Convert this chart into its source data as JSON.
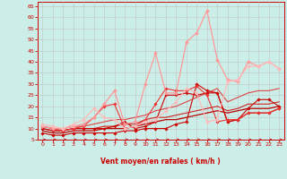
{
  "title": "",
  "xlabel": "Vent moyen/en rafales ( km/h )",
  "ylabel": "",
  "background_color": "#cceee8",
  "grid_color": "#bbbbbb",
  "x_ticks": [
    0,
    1,
    2,
    3,
    4,
    5,
    6,
    7,
    8,
    9,
    10,
    11,
    12,
    13,
    14,
    15,
    16,
    17,
    18,
    19,
    20,
    21,
    22,
    23
  ],
  "y_ticks": [
    5,
    10,
    15,
    20,
    25,
    30,
    35,
    40,
    45,
    50,
    55,
    60,
    65
  ],
  "xlim": [
    -0.5,
    23.5
  ],
  "ylim": [
    5,
    67
  ],
  "lines": [
    {
      "x": [
        0,
        1,
        2,
        3,
        4,
        5,
        6,
        7,
        8,
        9,
        10,
        11,
        12,
        13,
        14,
        15,
        16,
        17,
        18,
        19,
        20,
        21,
        22,
        23
      ],
      "y": [
        8,
        7,
        7,
        8,
        8,
        8,
        8,
        8,
        9,
        9,
        10,
        10,
        10,
        12,
        13,
        30,
        27,
        26,
        13,
        14,
        19,
        23,
        23,
        20
      ],
      "color": "#cc0000",
      "lw": 0.8,
      "marker": "D",
      "ms": 1.8
    },
    {
      "x": [
        0,
        1,
        2,
        3,
        4,
        5,
        6,
        7,
        8,
        9,
        10,
        11,
        12,
        13,
        14,
        15,
        16,
        17,
        18,
        19,
        20,
        21,
        22,
        23
      ],
      "y": [
        9,
        8,
        8,
        9,
        9,
        9,
        10,
        10,
        10,
        11,
        12,
        13,
        14,
        14,
        15,
        16,
        17,
        18,
        17,
        18,
        19,
        19,
        19,
        20
      ],
      "color": "#bb0000",
      "lw": 0.9,
      "marker": null,
      "ms": 0
    },
    {
      "x": [
        0,
        1,
        2,
        3,
        4,
        5,
        6,
        7,
        8,
        9,
        10,
        11,
        12,
        13,
        14,
        15,
        16,
        17,
        18,
        19,
        20,
        21,
        22,
        23
      ],
      "y": [
        10,
        9,
        9,
        10,
        10,
        10,
        11,
        11,
        12,
        12,
        14,
        15,
        15,
        16,
        17,
        18,
        19,
        20,
        18,
        19,
        21,
        21,
        21,
        22
      ],
      "color": "#cc2222",
      "lw": 0.8,
      "marker": null,
      "ms": 0
    },
    {
      "x": [
        0,
        1,
        2,
        3,
        4,
        5,
        6,
        7,
        8,
        9,
        10,
        11,
        12,
        13,
        14,
        15,
        16,
        17,
        18,
        19,
        20,
        21,
        22,
        23
      ],
      "y": [
        11,
        10,
        10,
        11,
        11,
        12,
        13,
        14,
        14,
        15,
        16,
        18,
        19,
        20,
        22,
        24,
        26,
        28,
        22,
        24,
        26,
        27,
        27,
        28
      ],
      "color": "#dd4444",
      "lw": 0.8,
      "marker": null,
      "ms": 0
    },
    {
      "x": [
        0,
        1,
        2,
        3,
        4,
        5,
        6,
        7,
        8,
        9,
        10,
        11,
        12,
        13,
        14,
        15,
        16,
        17,
        18,
        19,
        20,
        21,
        22,
        23
      ],
      "y": [
        10,
        9,
        9,
        10,
        10,
        10,
        10,
        11,
        13,
        10,
        11,
        13,
        25,
        25,
        26,
        25,
        26,
        26,
        13,
        14,
        17,
        17,
        17,
        19
      ],
      "color": "#cc0000",
      "lw": 0.8,
      "marker": "P",
      "ms": 2.0
    },
    {
      "x": [
        0,
        1,
        2,
        3,
        4,
        5,
        6,
        7,
        8,
        9,
        10,
        11,
        12,
        13,
        14,
        15,
        16,
        17,
        18,
        19,
        20,
        21,
        22,
        23
      ],
      "y": [
        11,
        10,
        9,
        10,
        11,
        15,
        20,
        21,
        10,
        11,
        14,
        21,
        28,
        27,
        27,
        29,
        25,
        13,
        14,
        14,
        17,
        17,
        17,
        19
      ],
      "color": "#ee3333",
      "lw": 0.8,
      "marker": "D",
      "ms": 1.8
    },
    {
      "x": [
        0,
        1,
        2,
        3,
        4,
        5,
        6,
        7,
        8,
        9,
        10,
        11,
        12,
        13,
        14,
        15,
        16,
        17,
        18,
        19,
        20,
        21,
        22,
        23
      ],
      "y": [
        11,
        10,
        10,
        11,
        12,
        15,
        21,
        27,
        12,
        13,
        30,
        44,
        26,
        26,
        49,
        53,
        63,
        41,
        32,
        31,
        40,
        38,
        40,
        37
      ],
      "color": "#ff9999",
      "lw": 0.9,
      "marker": "D",
      "ms": 2.0
    },
    {
      "x": [
        0,
        1,
        2,
        3,
        4,
        5,
        6,
        7,
        8,
        9,
        10,
        11,
        12,
        13,
        14,
        15,
        16,
        17,
        18,
        19,
        20,
        21,
        22,
        23
      ],
      "y": [
        12,
        11,
        10,
        12,
        14,
        19,
        15,
        14,
        10,
        11,
        13,
        14,
        18,
        22,
        28,
        26,
        13,
        14,
        31,
        32,
        38,
        38,
        40,
        37
      ],
      "color": "#ffbbbb",
      "lw": 0.9,
      "marker": "D",
      "ms": 2.0
    }
  ],
  "arrow_color": "#cc0000",
  "xlabel_fontsize": 5.5,
  "tick_fontsize": 4.5
}
